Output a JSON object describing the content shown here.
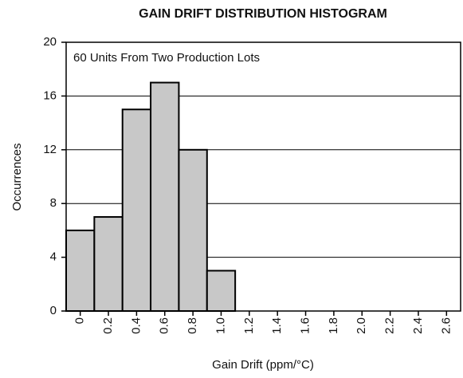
{
  "chart_data": {
    "type": "histogram",
    "title": "GAIN DRIFT DISTRIBUTION HISTOGRAM",
    "annotation": "60 Units From Two Production Lots",
    "xlabel": "Gain Drift (ppm/°C)",
    "ylabel": "Occurrences",
    "bins": [
      -0.1,
      0.1,
      0.3,
      0.5,
      0.7,
      0.9,
      1.1
    ],
    "values": [
      6,
      7,
      15,
      17,
      12,
      3
    ],
    "color": "#c8c8c8",
    "xlim": [
      -0.1,
      2.7
    ],
    "xticks": [
      0,
      0.2,
      0.4,
      0.6,
      0.8,
      {
        "value": 1,
        "label": "1.0"
      },
      1.2,
      1.4,
      1.6,
      1.8,
      {
        "value": 2,
        "label": "2.0"
      },
      2.2,
      2.4,
      2.6
    ],
    "ylim": [
      0,
      20
    ],
    "yticks": [
      0,
      4,
      8,
      12,
      16,
      20
    ],
    "grid": true
  }
}
